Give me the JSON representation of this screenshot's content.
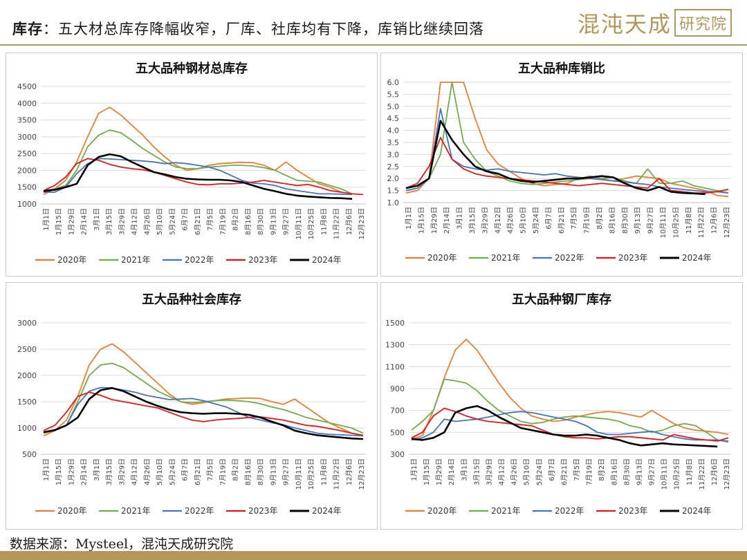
{
  "header": {
    "title_bold": "库存",
    "title_rest": "：五大材总库存降幅收窄，厂库、社库均有下降，库销比继续回落",
    "brand_text": "混沌天成",
    "brand_box": "研究院"
  },
  "footer": {
    "source": "数据来源：Mysteel，混沌天成研究院"
  },
  "colors": {
    "2020年": "#ED7D31",
    "2021年": "#70AD47",
    "2022年": "#4472C4",
    "2023年": "#E81717",
    "2024年": "#000000",
    "brand": "#b69558"
  },
  "chart_data": [
    {
      "type": "line",
      "title": "五大品种钢材总库存",
      "x_labels": [
        "1月1日",
        "1月15日",
        "1月29日",
        "2月14日",
        "3月1日",
        "3月15日",
        "3月29日",
        "4月12日",
        "4月26日",
        "5月10日",
        "5月24日",
        "6月7日",
        "6月21日",
        "7月5日",
        "7月19日",
        "8月2日",
        "8月16日",
        "8月30日",
        "9月13日",
        "9月27日",
        "10月11日",
        "10月25日",
        "11月8日",
        "11月22日",
        "12月6日",
        "12月23日"
      ],
      "ylim": [
        1000,
        4500
      ],
      "yticks": [
        1000,
        1500,
        2000,
        2500,
        3000,
        3500,
        4000,
        4500
      ],
      "series": [
        {
          "name": "2020年",
          "values": [
            1280,
            1450,
            1700,
            2250,
            3000,
            3700,
            3880,
            3650,
            3350,
            3050,
            2700,
            2400,
            2150,
            2000,
            2050,
            2150,
            2200,
            2220,
            2240,
            2230,
            2150,
            2000,
            2250,
            2000,
            1800,
            1600,
            1500,
            1350
          ]
        },
        {
          "name": "2021年",
          "values": [
            1400,
            1450,
            1550,
            2000,
            2700,
            3050,
            3200,
            3120,
            2900,
            2650,
            2450,
            2250,
            2100,
            2050,
            2050,
            2100,
            2120,
            2150,
            2150,
            2130,
            2080,
            2000,
            1850,
            1700,
            1680,
            1650,
            1550,
            1450,
            1300
          ]
        },
        {
          "name": "2022年",
          "values": [
            1350,
            1350,
            1500,
            1900,
            2200,
            2350,
            2340,
            2320,
            2300,
            2280,
            2250,
            2200,
            2230,
            2200,
            2150,
            2100,
            2000,
            1850,
            1700,
            1620,
            1600,
            1550,
            1450,
            1400,
            1350,
            1300,
            1300,
            1290,
            1280
          ]
        },
        {
          "name": "2023年",
          "values": [
            1400,
            1550,
            1800,
            2200,
            2350,
            2300,
            2180,
            2100,
            2050,
            2020,
            1950,
            1850,
            1750,
            1650,
            1580,
            1570,
            1600,
            1600,
            1620,
            1650,
            1700,
            1650,
            1600,
            1550,
            1580,
            1500,
            1400,
            1350,
            1300,
            1280
          ]
        },
        {
          "name": "2024年",
          "values": [
            1380,
            1420,
            1500,
            1600,
            2150,
            2400,
            2480,
            2420,
            2250,
            2100,
            1950,
            1880,
            1800,
            1750,
            1730,
            1720,
            1720,
            1700,
            1650,
            1550,
            1450,
            1380,
            1300,
            1250,
            1220,
            1200,
            1180,
            1170,
            1150
          ]
        }
      ]
    },
    {
      "type": "line",
      "title": "五大品种库销比",
      "x_labels": [
        "1月1日",
        "1月15日",
        "1月29日",
        "2月14日",
        "3月1日",
        "3月15日",
        "3月29日",
        "4月12日",
        "4月26日",
        "5月10日",
        "5月24日",
        "6月7日",
        "6月21日",
        "7月5日",
        "7月19日",
        "8月2日",
        "8月16日",
        "8月30日",
        "9月13日",
        "9月27日",
        "10月11日",
        "10月25日",
        "11月8日",
        "11月22日",
        "12月6日",
        "12月23日"
      ],
      "ylim": [
        1.0,
        6.0
      ],
      "yticks": [
        1.0,
        1.5,
        2.0,
        2.5,
        3.0,
        3.5,
        4.0,
        4.5,
        5.0,
        5.5,
        6.0
      ],
      "series": [
        {
          "name": "2020年",
          "values": [
            1.4,
            1.5,
            2.0,
            6.0,
            6.0,
            6.0,
            4.5,
            3.2,
            2.6,
            2.3,
            2.0,
            1.8,
            1.7,
            1.75,
            1.8,
            2.0,
            2.1,
            2.0,
            1.9,
            2.0,
            2.1,
            2.05,
            2.0,
            1.8,
            1.7,
            1.6,
            1.5,
            1.3,
            1.25
          ]
        },
        {
          "name": "2021年",
          "values": [
            1.5,
            1.6,
            2.0,
            3.0,
            6.0,
            3.5,
            2.8,
            2.3,
            2.1,
            1.9,
            1.8,
            1.75,
            1.8,
            1.85,
            1.9,
            1.95,
            2.0,
            2.0,
            2.05,
            1.9,
            1.8,
            2.4,
            1.8,
            1.8,
            1.9,
            1.7,
            1.6,
            1.5,
            1.4
          ]
        },
        {
          "name": "2022年",
          "values": [
            1.5,
            1.6,
            2.0,
            4.9,
            2.8,
            2.5,
            2.4,
            2.35,
            2.4,
            2.3,
            2.25,
            2.2,
            2.15,
            2.2,
            2.1,
            2.05,
            2.0,
            1.95,
            1.9,
            1.85,
            1.8,
            1.75,
            1.65,
            1.6,
            1.55,
            1.5,
            1.45,
            1.45,
            1.4
          ]
        },
        {
          "name": "2023年",
          "values": [
            1.6,
            1.8,
            2.5,
            3.7,
            2.8,
            2.4,
            2.2,
            2.1,
            2.05,
            2.0,
            1.95,
            1.9,
            1.85,
            1.8,
            1.75,
            1.7,
            1.75,
            1.8,
            1.75,
            1.7,
            1.65,
            1.6,
            2.0,
            1.5,
            1.45,
            1.4,
            1.4,
            1.45,
            1.55
          ]
        },
        {
          "name": "2024年",
          "values": [
            1.6,
            1.7,
            2.0,
            4.4,
            3.6,
            3.0,
            2.5,
            2.3,
            2.2,
            2.0,
            1.9,
            1.85,
            1.9,
            1.95,
            2.0,
            2.0,
            2.05,
            2.1,
            2.05,
            1.8,
            1.6,
            1.5,
            1.65,
            1.45,
            1.4,
            1.38,
            1.35
          ]
        }
      ]
    },
    {
      "type": "line",
      "title": "五大品种社会库存",
      "x_labels": [
        "1月1日",
        "1月15日",
        "1月29日",
        "2月14日",
        "3月1日",
        "3月15日",
        "3月29日",
        "4月12日",
        "4月26日",
        "5月10日",
        "5月24日",
        "6月7日",
        "6月21日",
        "7月5日",
        "7月19日",
        "8月2日",
        "8月16日",
        "8月30日",
        "9月13日",
        "9月27日",
        "10月11日",
        "10月25日",
        "11月8日",
        "11月22日",
        "12月6日",
        "12月23日"
      ],
      "ylim": [
        500,
        3000
      ],
      "yticks": [
        500,
        1000,
        1500,
        2000,
        2500,
        3000
      ],
      "series": [
        {
          "name": "2020年",
          "values": [
            850,
            950,
            1150,
            1600,
            2200,
            2500,
            2600,
            2450,
            2250,
            2050,
            1850,
            1650,
            1500,
            1450,
            1480,
            1520,
            1550,
            1560,
            1570,
            1560,
            1500,
            1450,
            1550,
            1400,
            1250,
            1100,
            1000,
            900,
            850
          ]
        },
        {
          "name": "2021年",
          "values": [
            900,
            950,
            1050,
            1500,
            2000,
            2200,
            2230,
            2150,
            2000,
            1850,
            1700,
            1600,
            1500,
            1480,
            1500,
            1520,
            1530,
            1520,
            1500,
            1460,
            1400,
            1350,
            1280,
            1200,
            1150,
            1100,
            1050,
            1000,
            900
          ]
        },
        {
          "name": "2022年",
          "values": [
            920,
            950,
            1050,
            1450,
            1700,
            1770,
            1760,
            1720,
            1680,
            1620,
            1580,
            1540,
            1550,
            1560,
            1520,
            1460,
            1400,
            1300,
            1200,
            1150,
            1100,
            1060,
            1000,
            950,
            900,
            880,
            870,
            860,
            850
          ]
        },
        {
          "name": "2023年",
          "values": [
            950,
            1050,
            1300,
            1600,
            1680,
            1620,
            1540,
            1500,
            1460,
            1420,
            1380,
            1300,
            1220,
            1150,
            1120,
            1150,
            1170,
            1180,
            1200,
            1210,
            1180,
            1150,
            1100,
            1050,
            1030,
            990,
            950,
            900,
            860
          ]
        },
        {
          "name": "2024年",
          "values": [
            920,
            960,
            1050,
            1200,
            1550,
            1720,
            1760,
            1700,
            1600,
            1500,
            1420,
            1350,
            1300,
            1280,
            1270,
            1280,
            1280,
            1270,
            1250,
            1200,
            1120,
            1050,
            950,
            900,
            860,
            840,
            820,
            800,
            790
          ]
        }
      ]
    },
    {
      "type": "line",
      "title": "五大品种钢厂库存",
      "x_labels": [
        "1月1日",
        "1月15日",
        "1月29日",
        "2月14日",
        "3月1日",
        "3月15日",
        "3月29日",
        "4月12日",
        "4月26日",
        "5月10日",
        "5月24日",
        "6月7日",
        "6月21日",
        "7月5日",
        "7月19日",
        "8月2日",
        "8月16日",
        "8月30日",
        "9月13日",
        "9月27日",
        "10月11日",
        "10月25日",
        "11月8日",
        "11月22日",
        "12月6日",
        "12月23日"
      ],
      "ylim": [
        300,
        1500
      ],
      "yticks": [
        300,
        500,
        700,
        900,
        1100,
        1300,
        1500
      ],
      "series": [
        {
          "name": "2020年",
          "values": [
            440,
            470,
            700,
            1000,
            1250,
            1350,
            1250,
            1100,
            950,
            820,
            720,
            650,
            620,
            600,
            610,
            640,
            660,
            680,
            690,
            680,
            660,
            640,
            700,
            640,
            580,
            540,
            520,
            510,
            500,
            480
          ]
        },
        {
          "name": "2021年",
          "values": [
            520,
            600,
            700,
            985,
            970,
            950,
            880,
            780,
            700,
            650,
            600,
            580,
            590,
            620,
            640,
            650,
            640,
            630,
            620,
            600,
            560,
            540,
            500,
            520,
            560,
            580,
            560,
            500,
            430,
            410
          ]
        },
        {
          "name": "2022年",
          "values": [
            430,
            450,
            500,
            620,
            600,
            610,
            620,
            640,
            660,
            680,
            690,
            680,
            660,
            640,
            620,
            600,
            560,
            500,
            480,
            480,
            490,
            500,
            510,
            480,
            460,
            440,
            430,
            430,
            430,
            420
          ]
        },
        {
          "name": "2023年",
          "values": [
            450,
            500,
            650,
            720,
            690,
            650,
            620,
            600,
            590,
            580,
            570,
            560,
            520,
            480,
            460,
            450,
            450,
            440,
            450,
            460,
            460,
            450,
            440,
            430,
            480,
            460,
            440,
            430,
            420,
            450
          ]
        },
        {
          "name": "2024年",
          "values": [
            440,
            430,
            450,
            500,
            680,
            720,
            740,
            700,
            640,
            590,
            540,
            520,
            500,
            480,
            470,
            470,
            480,
            470,
            450,
            430,
            400,
            380,
            390,
            400,
            390,
            385,
            380,
            375,
            370
          ]
        }
      ]
    }
  ]
}
